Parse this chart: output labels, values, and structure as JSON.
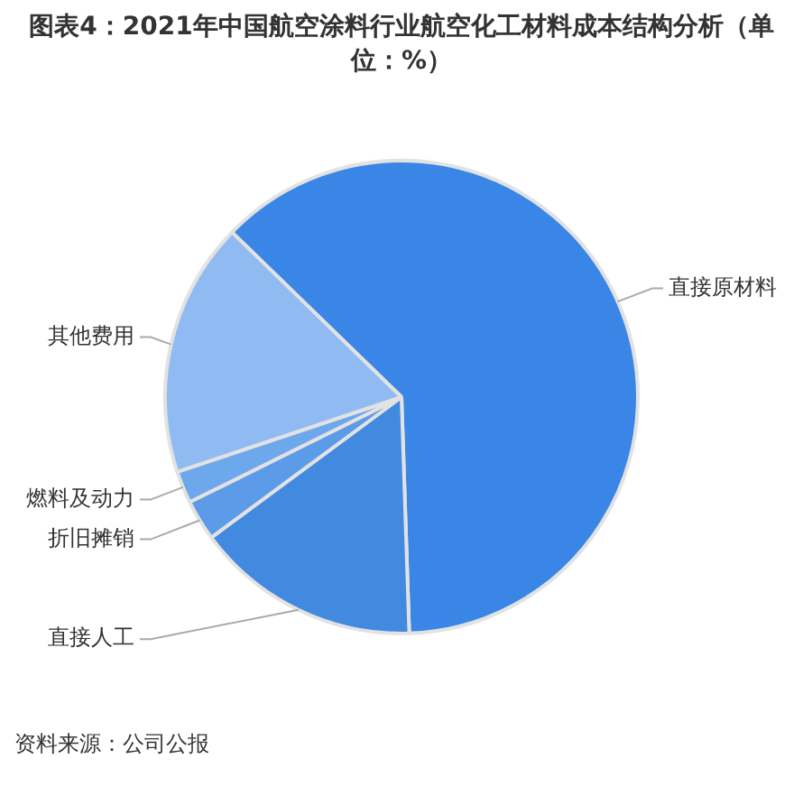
{
  "chart_data": {
    "type": "pie",
    "title": "图表4：2021年中国航空涂料行业航空化工材料成本结构分析（单位：%）",
    "categories": [
      "直接原材料",
      "直接人工",
      "折旧摊销",
      "燃料及动力",
      "其他费用"
    ],
    "values": [
      62.2,
      15.4,
      2.8,
      2.2,
      17.4
    ],
    "colors": [
      "#3a86e6",
      "#4289e0",
      "#5b9be8",
      "#6ea8ec",
      "#90bbf2"
    ],
    "legend": false,
    "annotations": [
      "资料来源：公司公报"
    ]
  }
}
